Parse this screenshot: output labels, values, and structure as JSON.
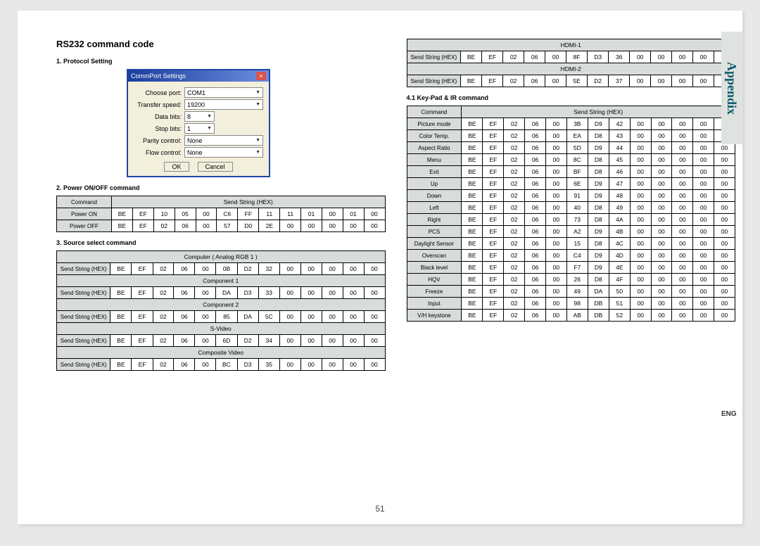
{
  "sidebar_title": "Appendix",
  "lang": "ENG",
  "page_number": "51",
  "title": "RS232 command code",
  "sub1": "1. Protocol Setting",
  "sub2": "2. Power ON/OFF command",
  "sub3": "3. Source select command",
  "sub41": "4.1 Key-Pad & IR command",
  "dialog": {
    "title": "CommPort Settings",
    "choose_port_label": "Choose port:",
    "choose_port_val": "COM1",
    "transfer_label": "Transfer speed:",
    "transfer_val": "19200",
    "data_bits_label": "Data bits:",
    "data_bits_val": "8",
    "stop_bits_label": "Stop bits:",
    "stop_bits_val": "1",
    "parity_label": "Parity control:",
    "parity_val": "None",
    "flow_label": "Flow control:",
    "flow_val": "None",
    "ok": "OK",
    "cancel": "Cancel"
  },
  "hdr_command": "Command",
  "hdr_send": "Send String (HEX)",
  "power_on_label": "Power ON",
  "power_on": [
    "BE",
    "EF",
    "10",
    "05",
    "00",
    "C6",
    "FF",
    "11",
    "11",
    "01",
    "00",
    "01",
    "00"
  ],
  "power_off_label": "Power OFF",
  "power_off": [
    "BE",
    "EF",
    "02",
    "06",
    "00",
    "57",
    "D0",
    "2E",
    "00",
    "00",
    "00",
    "00",
    "00"
  ],
  "sources": [
    {
      "name": "Computer ( Analog RGB 1 )",
      "hex": [
        "BE",
        "EF",
        "02",
        "06",
        "00",
        "0B",
        "D2",
        "32",
        "00",
        "00",
        "00",
        "00",
        "00"
      ]
    },
    {
      "name": "Component 1",
      "hex": [
        "BE",
        "EF",
        "02",
        "06",
        "00",
        "DA",
        "D3",
        "33",
        "00",
        "00",
        "00",
        "00",
        "00"
      ]
    },
    {
      "name": "Component 2",
      "hex": [
        "BE",
        "EF",
        "02",
        "06",
        "00",
        "85",
        "DA",
        "5C",
        "00",
        "00",
        "00",
        "00",
        "00"
      ]
    },
    {
      "name": "S-Video",
      "hex": [
        "BE",
        "EF",
        "02",
        "06",
        "00",
        "6D",
        "D2",
        "34",
        "00",
        "00",
        "00",
        "00",
        "00"
      ]
    },
    {
      "name": "Composite Video",
      "hex": [
        "BE",
        "EF",
        "02",
        "06",
        "00",
        "BC",
        "D3",
        "35",
        "00",
        "00",
        "00",
        "00",
        "00"
      ]
    }
  ],
  "sources_right": [
    {
      "name": "HDMI-1",
      "hex": [
        "BE",
        "EF",
        "02",
        "06",
        "00",
        "8F",
        "D3",
        "36",
        "00",
        "00",
        "00",
        "00",
        "00"
      ]
    },
    {
      "name": "HDMI-2",
      "hex": [
        "BE",
        "EF",
        "02",
        "06",
        "00",
        "5E",
        "D2",
        "37",
        "00",
        "00",
        "00",
        "00",
        "00"
      ]
    }
  ],
  "keypad": [
    {
      "name": "Picture mode",
      "hex": [
        "BE",
        "EF",
        "02",
        "06",
        "00",
        "3B",
        "D9",
        "42",
        "00",
        "00",
        "00",
        "00",
        "00"
      ]
    },
    {
      "name": "Color Temp.",
      "hex": [
        "BE",
        "EF",
        "02",
        "06",
        "00",
        "EA",
        "D8",
        "43",
        "00",
        "00",
        "00",
        "00",
        "00"
      ]
    },
    {
      "name": "Aspect Ratio",
      "hex": [
        "BE",
        "EF",
        "02",
        "06",
        "00",
        "5D",
        "D9",
        "44",
        "00",
        "00",
        "00",
        "00",
        "00"
      ]
    },
    {
      "name": "Menu",
      "hex": [
        "BE",
        "EF",
        "02",
        "06",
        "00",
        "8C",
        "D8",
        "45",
        "00",
        "00",
        "00",
        "00",
        "00"
      ]
    },
    {
      "name": "Exit",
      "hex": [
        "BE",
        "EF",
        "02",
        "06",
        "00",
        "BF",
        "D8",
        "46",
        "00",
        "00",
        "00",
        "00",
        "00"
      ]
    },
    {
      "name": "Up",
      "hex": [
        "BE",
        "EF",
        "02",
        "06",
        "00",
        "6E",
        "D9",
        "47",
        "00",
        "00",
        "00",
        "00",
        "00"
      ]
    },
    {
      "name": "Down",
      "hex": [
        "BE",
        "EF",
        "02",
        "06",
        "00",
        "91",
        "D9",
        "48",
        "00",
        "00",
        "00",
        "00",
        "00"
      ]
    },
    {
      "name": "Left",
      "hex": [
        "BE",
        "EF",
        "02",
        "06",
        "00",
        "40",
        "D8",
        "49",
        "00",
        "00",
        "00",
        "00",
        "00"
      ]
    },
    {
      "name": "Right",
      "hex": [
        "BE",
        "EF",
        "02",
        "06",
        "00",
        "73",
        "D8",
        "4A",
        "00",
        "00",
        "00",
        "00",
        "00"
      ]
    },
    {
      "name": "PCS",
      "hex": [
        "BE",
        "EF",
        "02",
        "06",
        "00",
        "A2",
        "D9",
        "4B",
        "00",
        "00",
        "00",
        "00",
        "00"
      ]
    },
    {
      "name": "Daylight Sensor",
      "hex": [
        "BE",
        "EF",
        "02",
        "06",
        "00",
        "15",
        "D8",
        "4C",
        "00",
        "00",
        "00",
        "00",
        "00"
      ]
    },
    {
      "name": "Overscan",
      "hex": [
        "BE",
        "EF",
        "02",
        "06",
        "00",
        "C4",
        "D9",
        "4D",
        "00",
        "00",
        "00",
        "00",
        "00"
      ]
    },
    {
      "name": "Black level",
      "hex": [
        "BE",
        "EF",
        "02",
        "06",
        "00",
        "F7",
        "D9",
        "4E",
        "00",
        "00",
        "00",
        "00",
        "00"
      ]
    },
    {
      "name": "HQV",
      "hex": [
        "BE",
        "EF",
        "02",
        "06",
        "00",
        "26",
        "D8",
        "4F",
        "00",
        "00",
        "00",
        "00",
        "00"
      ]
    },
    {
      "name": "Freeze",
      "hex": [
        "BE",
        "EF",
        "02",
        "06",
        "00",
        "49",
        "DA",
        "50",
        "00",
        "00",
        "00",
        "00",
        "00"
      ]
    },
    {
      "name": "Input",
      "hex": [
        "BE",
        "EF",
        "02",
        "06",
        "00",
        "98",
        "DB",
        "51",
        "00",
        "00",
        "00",
        "00",
        "00"
      ]
    },
    {
      "name": "V/H keystone",
      "hex": [
        "BE",
        "EF",
        "02",
        "06",
        "00",
        "AB",
        "DB",
        "52",
        "00",
        "00",
        "00",
        "00",
        "00"
      ]
    }
  ]
}
